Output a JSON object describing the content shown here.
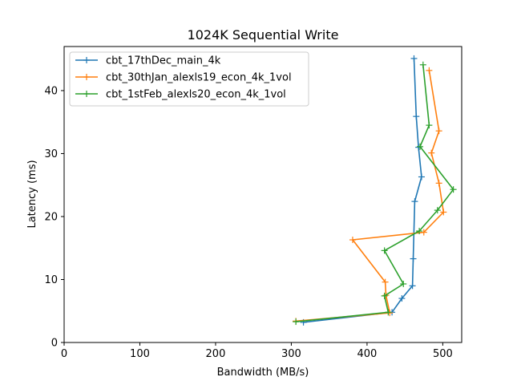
{
  "chart_data": {
    "type": "line",
    "title": "1024K  Sequential Write",
    "xlabel": "Bandwidth (MB/s)",
    "ylabel": "Latency (ms)",
    "xlim": [
      0,
      525
    ],
    "ylim": [
      0,
      47
    ],
    "xticks": [
      0,
      100,
      200,
      300,
      400,
      500
    ],
    "yticks": [
      0,
      10,
      20,
      30,
      40
    ],
    "grid": false,
    "legend_position": "upper-left",
    "marker": "+",
    "series": [
      {
        "name": "cbt_17thDec_main_4k",
        "color": "#1f77b4",
        "x": [
          316,
          433,
          446,
          460,
          461,
          463,
          472,
          468,
          465,
          462
        ],
        "y": [
          3.2,
          4.8,
          7.0,
          9.0,
          13.3,
          22.4,
          26.3,
          31.0,
          35.9,
          45.1
        ]
      },
      {
        "name": "cbt_30thJan_alexls19_econ_4k_1vol",
        "color": "#ff7f0e",
        "x": [
          306,
          430,
          425,
          424,
          381,
          475,
          501,
          495,
          485,
          495,
          482
        ],
        "y": [
          3.4,
          4.7,
          7.5,
          9.6,
          16.3,
          17.5,
          20.7,
          25.3,
          30.1,
          33.6,
          43.2
        ]
      },
      {
        "name": "cbt_1stFeb_alexls20_econ_4k_1vol",
        "color": "#2ca02c",
        "x": [
          306,
          428,
          423,
          448,
          423,
          469,
          493,
          514,
          470,
          482,
          474
        ],
        "y": [
          3.3,
          4.8,
          7.4,
          9.3,
          14.6,
          17.7,
          21.0,
          24.3,
          31.1,
          34.5,
          44.1
        ]
      }
    ]
  }
}
